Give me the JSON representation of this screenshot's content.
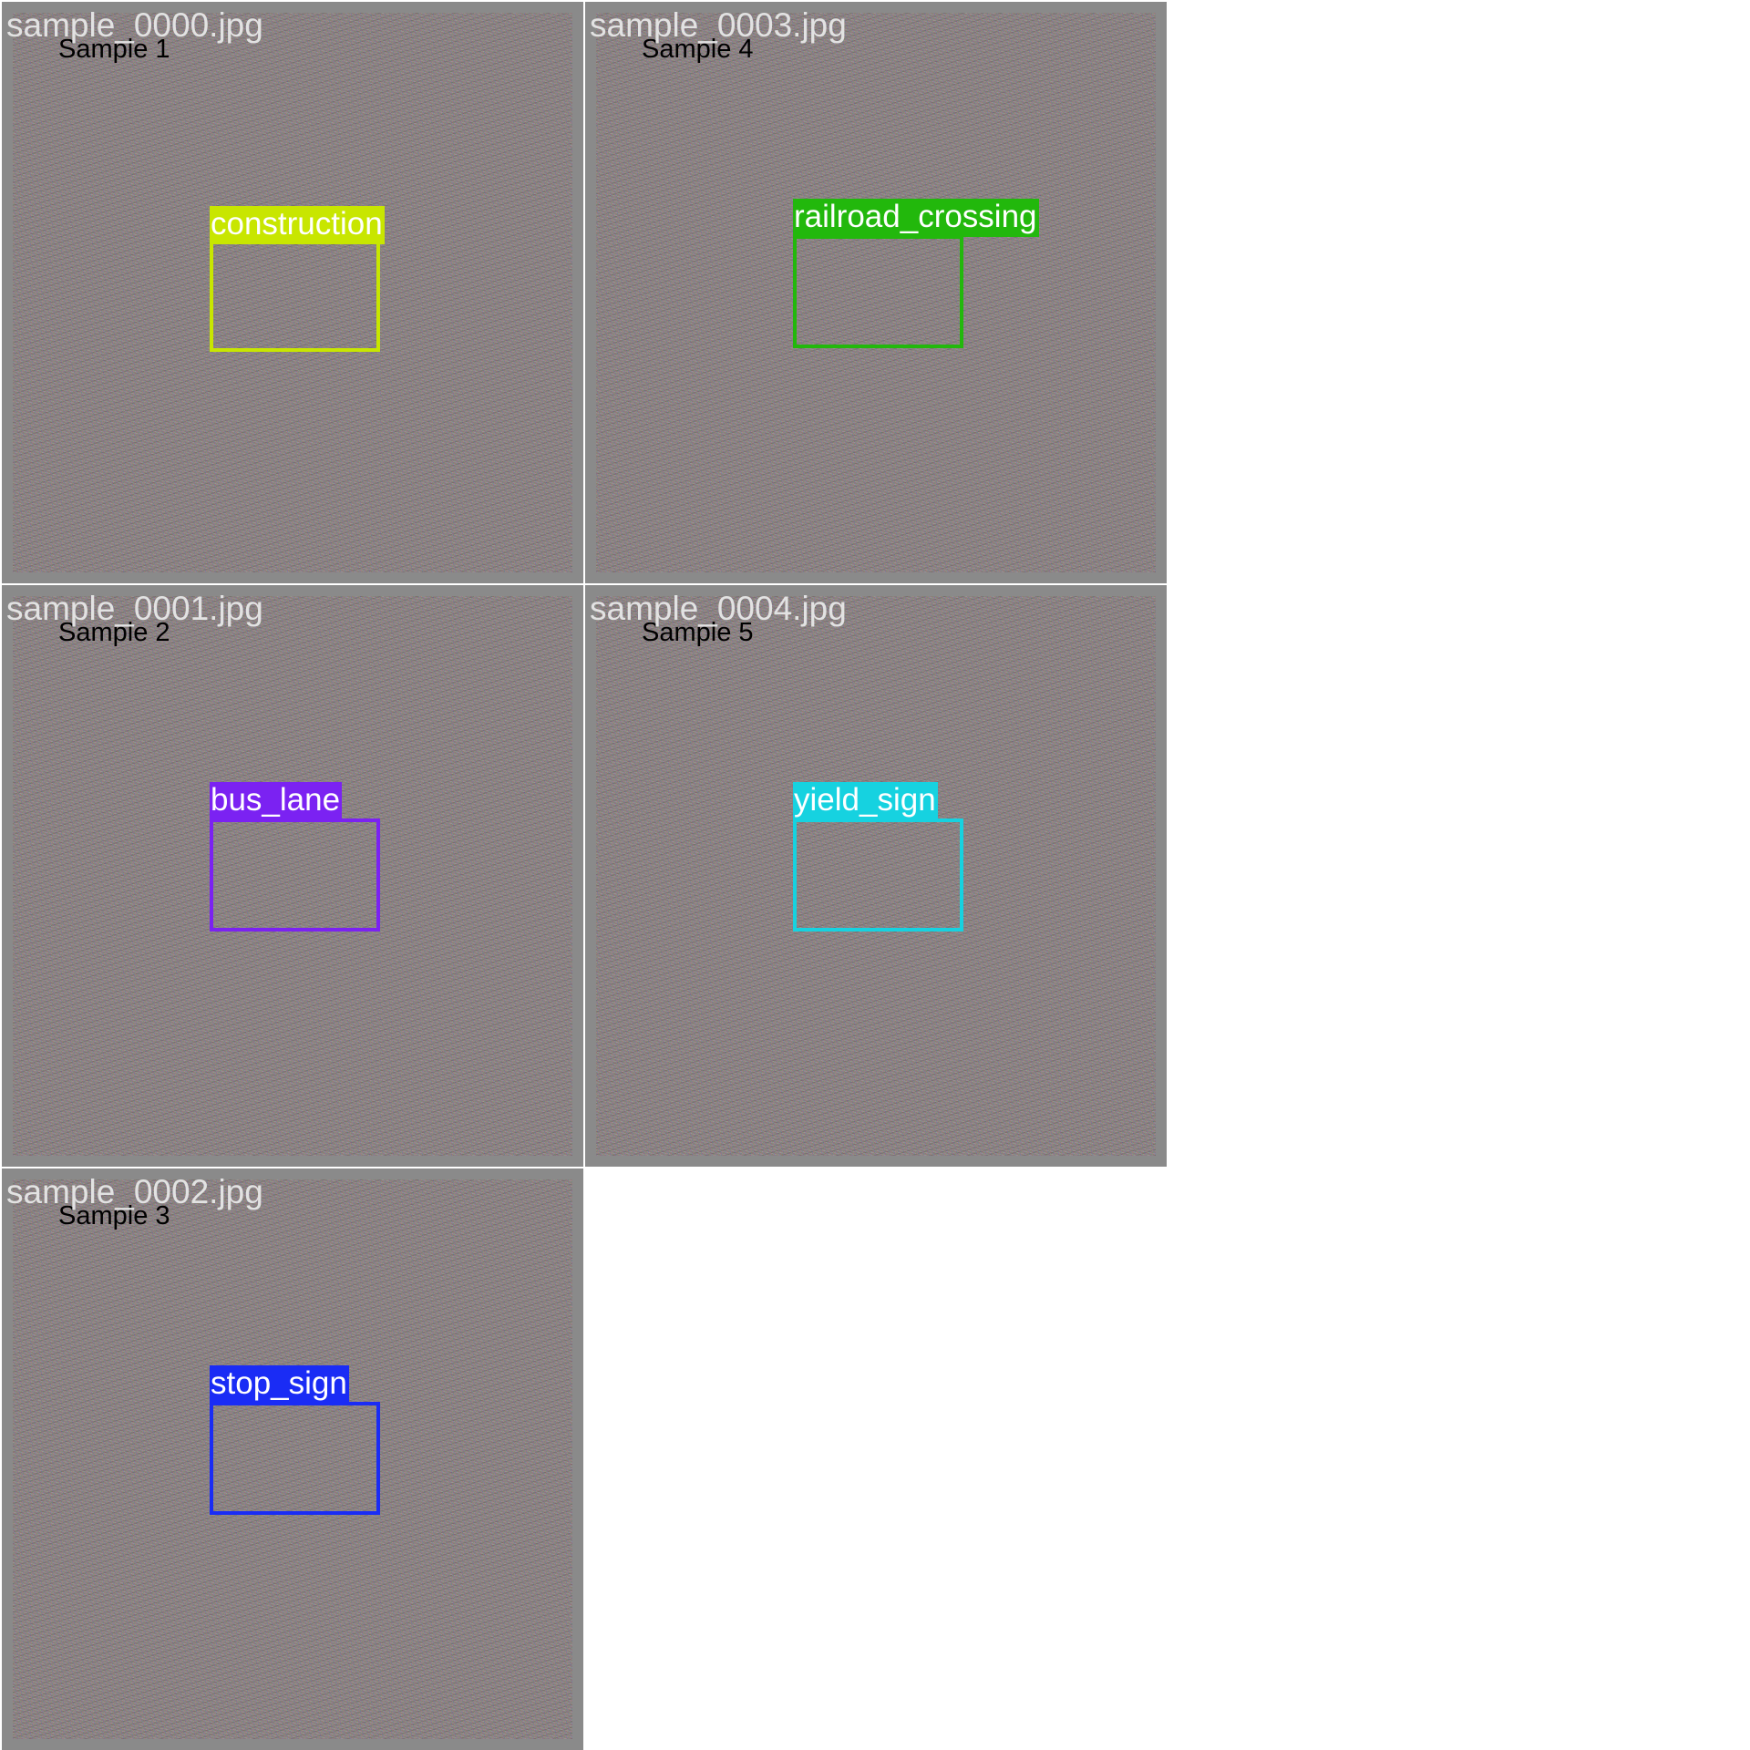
{
  "tiles": [
    {
      "filename": "sample_0000.jpg",
      "sample_label": "Sample 1",
      "class_label": "construction",
      "color": "#c8e600"
    },
    {
      "filename": "sample_0001.jpg",
      "sample_label": "Sample 2",
      "class_label": "bus_lane",
      "color": "#7b22f2"
    },
    {
      "filename": "sample_0002.jpg",
      "sample_label": "Sample 3",
      "class_label": "stop_sign",
      "color": "#1a2cf5"
    },
    {
      "filename": "sample_0003.jpg",
      "sample_label": "Sample 4",
      "class_label": "railroad_crossing",
      "color": "#22b80c"
    },
    {
      "filename": "sample_0004.jpg",
      "sample_label": "Sample 5",
      "class_label": "yield_sign",
      "color": "#16d2e0"
    }
  ]
}
